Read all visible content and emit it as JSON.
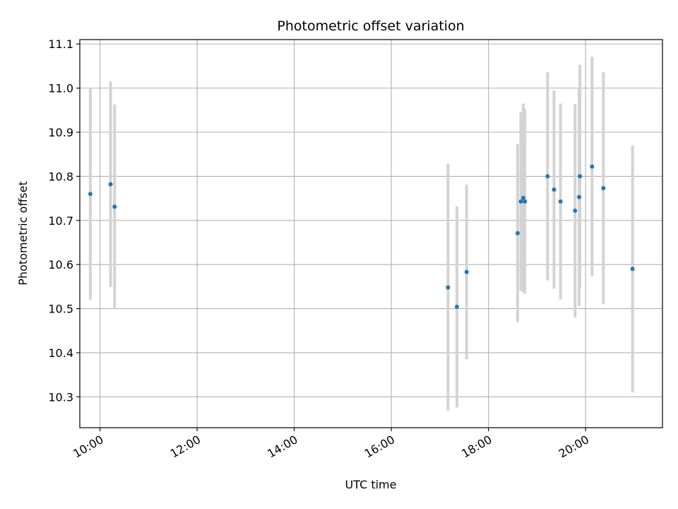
{
  "chart_data": {
    "type": "scatter",
    "title": "Photometric offset variation",
    "xlabel": "UTC time",
    "ylabel": "Photometric offset",
    "x_ticks": [
      "10:00",
      "12:00",
      "14:00",
      "16:00",
      "18:00",
      "20:00"
    ],
    "y_ticks": [
      "10.3",
      "10.4",
      "10.5",
      "10.6",
      "10.7",
      "10.8",
      "10.9",
      "11.0",
      "11.1"
    ],
    "xlim": [
      "09:35",
      "21:35"
    ],
    "ylim": [
      10.23,
      11.11
    ],
    "grid": true,
    "colors": {
      "marker": "#1f77b4",
      "errorbar": "#d3d3d3",
      "grid": "#b0b0b0"
    },
    "points": [
      {
        "time": "09:48",
        "y": 10.76,
        "yerr": 0.24
      },
      {
        "time": "10:13",
        "y": 10.782,
        "yerr": 0.233
      },
      {
        "time": "10:18",
        "y": 10.731,
        "yerr": 0.232
      },
      {
        "time": "17:10",
        "y": 10.548,
        "yerr": 0.28
      },
      {
        "time": "17:21",
        "y": 10.504,
        "yerr": 0.228
      },
      {
        "time": "17:33",
        "y": 10.583,
        "yerr": 0.198
      },
      {
        "time": "18:36",
        "y": 10.671,
        "yerr": 0.202
      },
      {
        "time": "18:40",
        "y": 10.743,
        "yerr": 0.203
      },
      {
        "time": "18:43",
        "y": 10.751,
        "yerr": 0.214
      },
      {
        "time": "18:45",
        "y": 10.743,
        "yerr": 0.21
      },
      {
        "time": "19:13",
        "y": 10.8,
        "yerr": 0.236
      },
      {
        "time": "19:21",
        "y": 10.77,
        "yerr": 0.225
      },
      {
        "time": "19:29",
        "y": 10.743,
        "yerr": 0.222
      },
      {
        "time": "19:47",
        "y": 10.722,
        "yerr": 0.242
      },
      {
        "time": "19:52",
        "y": 10.753,
        "yerr": 0.247
      },
      {
        "time": "19:53",
        "y": 10.8,
        "yerr": 0.253
      },
      {
        "time": "20:08",
        "y": 10.822,
        "yerr": 0.249
      },
      {
        "time": "20:22",
        "y": 10.773,
        "yerr": 0.263
      },
      {
        "time": "20:58",
        "y": 10.59,
        "yerr": 0.28
      }
    ]
  }
}
